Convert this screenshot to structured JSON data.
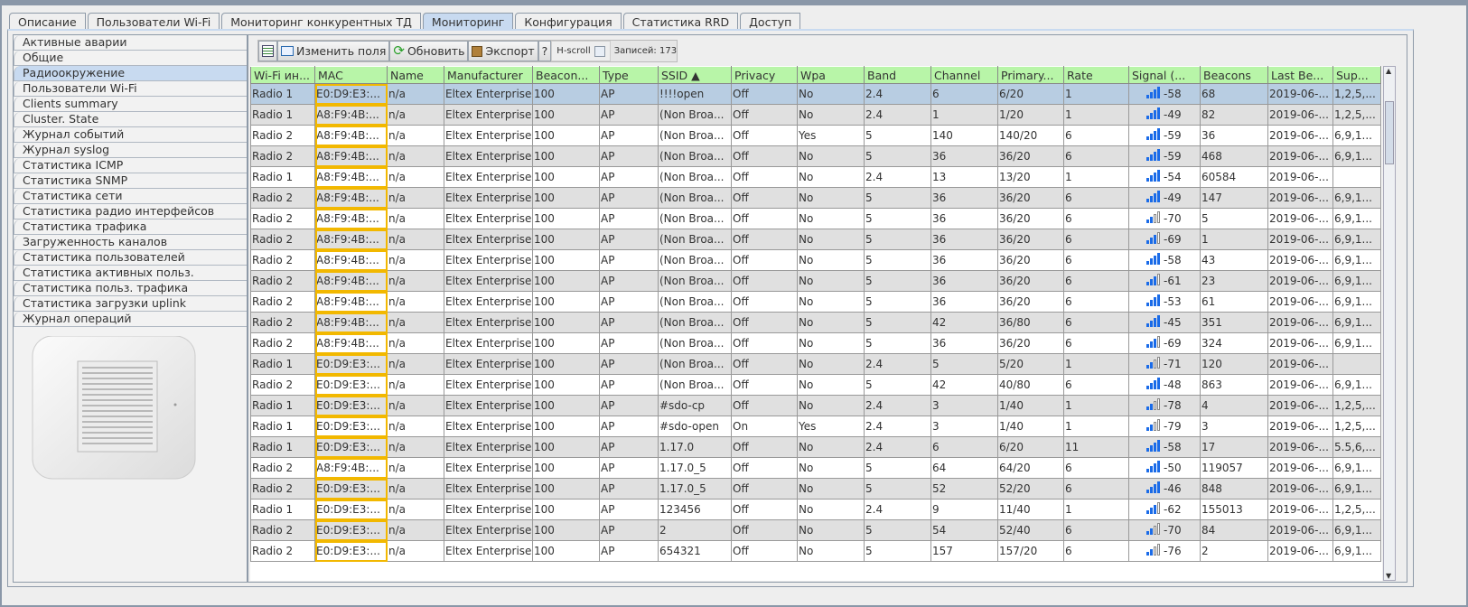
{
  "tabs": [
    "Описание",
    "Пользователи Wi-Fi",
    "Мониторинг конкурентных ТД",
    "Мониторинг",
    "Конфигурация",
    "Статистика RRD",
    "Доступ"
  ],
  "active_tab": 3,
  "sidebar": {
    "items": [
      "Активные аварии",
      "Общие",
      "Радиоокружение",
      "Пользователи Wi-Fi",
      "Clients summary",
      "Cluster. State",
      "Журнал событий",
      "Журнал syslog",
      "Статистика ICMP",
      "Статистика SNMP",
      "Статистика сети",
      "Статистика радио интерфейсов",
      "Статистика трафика",
      "Загруженность каналов",
      "Статистика пользователей",
      "Статистика активных польз.",
      "Статистика польз. трафика",
      "Статистика загрузки uplink",
      "Журнал операций"
    ],
    "active": 2
  },
  "toolbar": {
    "edit_fields": "Изменить поля",
    "refresh": "Обновить",
    "export": "Экспорт",
    "help": "?",
    "hscroll": "H-scroll",
    "records": "Записей: 173"
  },
  "colors": {
    "header": "#b8f5a8",
    "selected_row": "#b8cde2",
    "mac_highlight": "#f2b800",
    "signal": "#1a6be8"
  },
  "table": {
    "columns": [
      "Wi-Fi ин...",
      "MAC",
      "Name",
      "Manufacturer",
      "Beacon...",
      "Type",
      "SSID ▲",
      "Privacy",
      "Wpa",
      "Band",
      "Channel",
      "Primary...",
      "Rate",
      "Signal (...",
      "Beacons",
      "Last Be...",
      "Sup..."
    ],
    "rows": [
      [
        "Radio 1",
        "E0:D9:E3:...",
        "n/a",
        "Eltex Enterprise",
        "100",
        "AP",
        "!!!!open",
        "Off",
        "No",
        "2.4",
        "6",
        "6/20",
        "1",
        "-58",
        "68",
        "2019-06-...",
        "1,2,5,..."
      ],
      [
        "Radio 1",
        "A8:F9:4B:...",
        "n/a",
        "Eltex Enterprise",
        "100",
        "AP",
        "(Non Broa...",
        "Off",
        "No",
        "2.4",
        "1",
        "1/20",
        "1",
        "-49",
        "82",
        "2019-06-...",
        "1,2,5,..."
      ],
      [
        "Radio 2",
        "A8:F9:4B:...",
        "n/a",
        "Eltex Enterprise",
        "100",
        "AP",
        "(Non Broa...",
        "Off",
        "Yes",
        "5",
        "140",
        "140/20",
        "6",
        "-59",
        "36",
        "2019-06-...",
        "6,9,1..."
      ],
      [
        "Radio 2",
        "A8:F9:4B:...",
        "n/a",
        "Eltex Enterprise",
        "100",
        "AP",
        "(Non Broa...",
        "Off",
        "No",
        "5",
        "36",
        "36/20",
        "6",
        "-59",
        "468",
        "2019-06-...",
        "6,9,1..."
      ],
      [
        "Radio 1",
        "A8:F9:4B:...",
        "n/a",
        "Eltex Enterprise",
        "100",
        "AP",
        "(Non Broa...",
        "Off",
        "No",
        "2.4",
        "13",
        "13/20",
        "1",
        "-54",
        "60584",
        "2019-06-...",
        ""
      ],
      [
        "Radio 2",
        "A8:F9:4B:...",
        "n/a",
        "Eltex Enterprise",
        "100",
        "AP",
        "(Non Broa...",
        "Off",
        "No",
        "5",
        "36",
        "36/20",
        "6",
        "-49",
        "147",
        "2019-06-...",
        "6,9,1..."
      ],
      [
        "Radio 2",
        "A8:F9:4B:...",
        "n/a",
        "Eltex Enterprise",
        "100",
        "AP",
        "(Non Broa...",
        "Off",
        "No",
        "5",
        "36",
        "36/20",
        "6",
        "-70",
        "5",
        "2019-06-...",
        "6,9,1..."
      ],
      [
        "Radio 2",
        "A8:F9:4B:...",
        "n/a",
        "Eltex Enterprise",
        "100",
        "AP",
        "(Non Broa...",
        "Off",
        "No",
        "5",
        "36",
        "36/20",
        "6",
        "-69",
        "1",
        "2019-06-...",
        "6,9,1..."
      ],
      [
        "Radio 2",
        "A8:F9:4B:...",
        "n/a",
        "Eltex Enterprise",
        "100",
        "AP",
        "(Non Broa...",
        "Off",
        "No",
        "5",
        "36",
        "36/20",
        "6",
        "-58",
        "43",
        "2019-06-...",
        "6,9,1..."
      ],
      [
        "Radio 2",
        "A8:F9:4B:...",
        "n/a",
        "Eltex Enterprise",
        "100",
        "AP",
        "(Non Broa...",
        "Off",
        "No",
        "5",
        "36",
        "36/20",
        "6",
        "-61",
        "23",
        "2019-06-...",
        "6,9,1..."
      ],
      [
        "Radio 2",
        "A8:F9:4B:...",
        "n/a",
        "Eltex Enterprise",
        "100",
        "AP",
        "(Non Broa...",
        "Off",
        "No",
        "5",
        "36",
        "36/20",
        "6",
        "-53",
        "61",
        "2019-06-...",
        "6,9,1..."
      ],
      [
        "Radio 2",
        "A8:F9:4B:...",
        "n/a",
        "Eltex Enterprise",
        "100",
        "AP",
        "(Non Broa...",
        "Off",
        "No",
        "5",
        "42",
        "36/80",
        "6",
        "-45",
        "351",
        "2019-06-...",
        "6,9,1..."
      ],
      [
        "Radio 2",
        "A8:F9:4B:...",
        "n/a",
        "Eltex Enterprise",
        "100",
        "AP",
        "(Non Broa...",
        "Off",
        "No",
        "5",
        "36",
        "36/20",
        "6",
        "-69",
        "324",
        "2019-06-...",
        "6,9,1..."
      ],
      [
        "Radio 1",
        "E0:D9:E3:...",
        "n/a",
        "Eltex Enterprise",
        "100",
        "AP",
        "(Non Broa...",
        "Off",
        "No",
        "2.4",
        "5",
        "5/20",
        "1",
        "-71",
        "120",
        "2019-06-...",
        ""
      ],
      [
        "Radio 2",
        "E0:D9:E3:...",
        "n/a",
        "Eltex Enterprise",
        "100",
        "AP",
        "(Non Broa...",
        "Off",
        "No",
        "5",
        "42",
        "40/80",
        "6",
        "-48",
        "863",
        "2019-06-...",
        "6,9,1..."
      ],
      [
        "Radio 1",
        "E0:D9:E3:...",
        "n/a",
        "Eltex Enterprise",
        "100",
        "AP",
        "#sdo-cp",
        "Off",
        "No",
        "2.4",
        "3",
        "1/40",
        "1",
        "-78",
        "4",
        "2019-06-...",
        "1,2,5,..."
      ],
      [
        "Radio 1",
        "E0:D9:E3:...",
        "n/a",
        "Eltex Enterprise",
        "100",
        "AP",
        "#sdo-open",
        "On",
        "Yes",
        "2.4",
        "3",
        "1/40",
        "1",
        "-79",
        "3",
        "2019-06-...",
        "1,2,5,..."
      ],
      [
        "Radio 1",
        "E0:D9:E3:...",
        "n/a",
        "Eltex Enterprise",
        "100",
        "AP",
        "1.17.0",
        "Off",
        "No",
        "2.4",
        "6",
        "6/20",
        "11",
        "-58",
        "17",
        "2019-06-...",
        "5.5,6,..."
      ],
      [
        "Radio 2",
        "A8:F9:4B:...",
        "n/a",
        "Eltex Enterprise",
        "100",
        "AP",
        "1.17.0_5",
        "Off",
        "No",
        "5",
        "64",
        "64/20",
        "6",
        "-50",
        "119057",
        "2019-06-...",
        "6,9,1..."
      ],
      [
        "Radio 2",
        "E0:D9:E3:...",
        "n/a",
        "Eltex Enterprise",
        "100",
        "AP",
        "1.17.0_5",
        "Off",
        "No",
        "5",
        "52",
        "52/20",
        "6",
        "-46",
        "848",
        "2019-06-...",
        "6,9,1..."
      ],
      [
        "Radio 1",
        "E0:D9:E3:...",
        "n/a",
        "Eltex Enterprise",
        "100",
        "AP",
        "123456",
        "Off",
        "No",
        "2.4",
        "9",
        "11/40",
        "1",
        "-62",
        "155013",
        "2019-06-...",
        "1,2,5,..."
      ],
      [
        "Radio 2",
        "E0:D9:E3:...",
        "n/a",
        "Eltex Enterprise",
        "100",
        "AP",
        "2",
        "Off",
        "No",
        "5",
        "54",
        "52/40",
        "6",
        "-70",
        "84",
        "2019-06-...",
        "6,9,1..."
      ],
      [
        "Radio 2",
        "E0:D9:E3:...",
        "n/a",
        "Eltex Enterprise",
        "100",
        "AP",
        "654321",
        "Off",
        "No",
        "5",
        "157",
        "157/20",
        "6",
        "-76",
        "2",
        "2019-06-...",
        "6,9,1..."
      ]
    ],
    "selected_row": 0
  }
}
